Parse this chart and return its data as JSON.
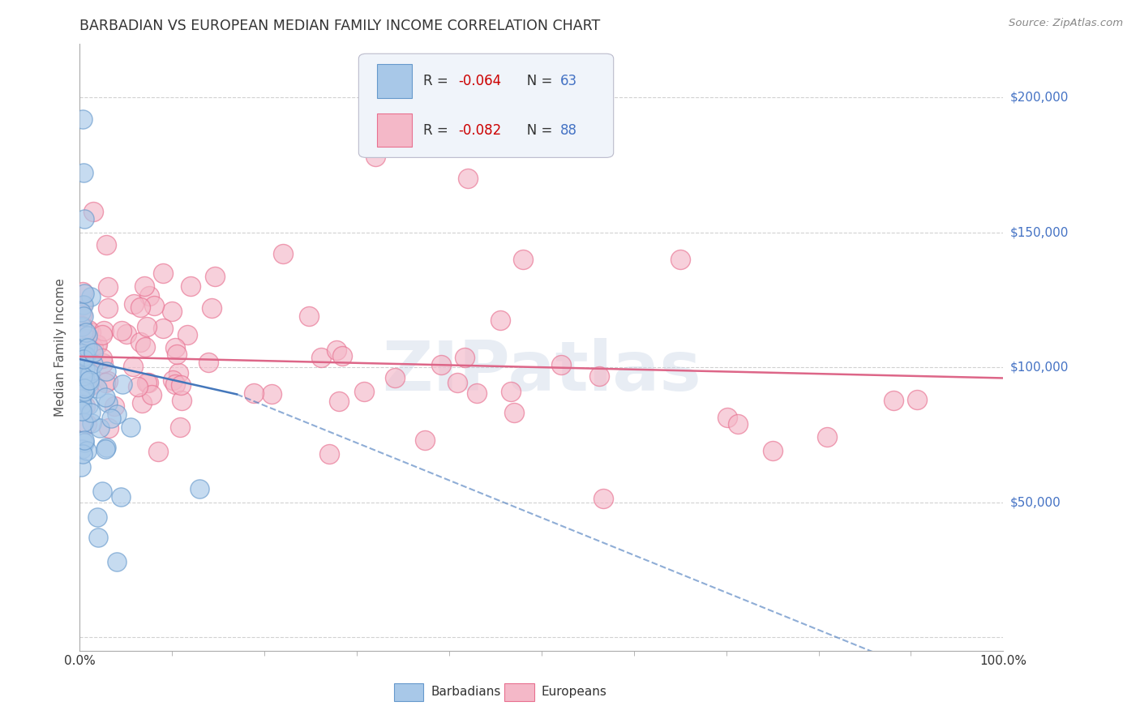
{
  "title": "BARBADIAN VS EUROPEAN MEDIAN FAMILY INCOME CORRELATION CHART",
  "source": "Source: ZipAtlas.com",
  "ylabel": "Median Family Income",
  "legend_label1": "Barbadians",
  "legend_label2": "Europeans",
  "barbadian_color": "#a8c8e8",
  "european_color": "#f4b8c8",
  "barbadian_edge_color": "#6699cc",
  "european_edge_color": "#e87090",
  "barbadian_trend_color": "#4477bb",
  "european_trend_color": "#dd6688",
  "watermark": "ZIPatlas",
  "background_color": "#ffffff",
  "grid_color": "#cccccc",
  "title_color": "#333333",
  "axis_label_color": "#555555",
  "right_tick_color": "#4472c4",
  "note_color_r": "#cc0000",
  "note_color_n": "#4472c4"
}
